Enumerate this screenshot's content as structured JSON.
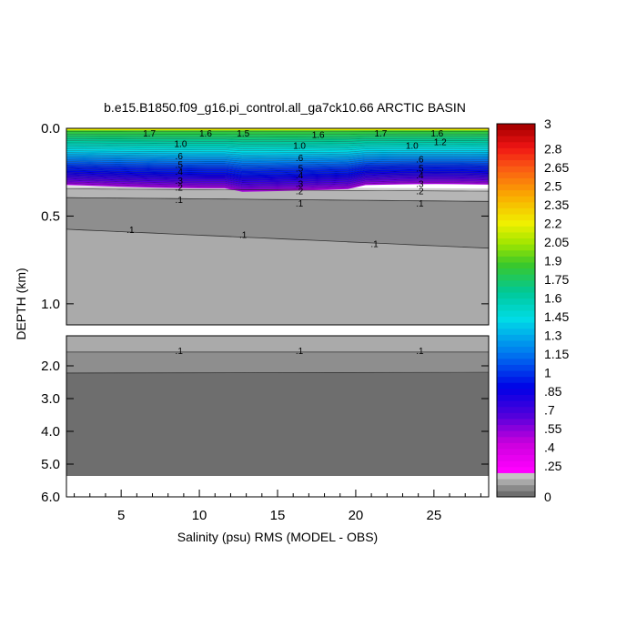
{
  "chart_data": {
    "type": "contour",
    "title": "b.e15.B1850.f09_g16.pi_control.all_ga7ck10.66 ARCTIC BASIN",
    "xlabel": "Salinity (psu) RMS (MODEL - OBS)",
    "ylabel": "DEPTH (km)",
    "xlim": [
      1.5,
      28.5
    ],
    "x_ticks": [
      5,
      10,
      15,
      20,
      25
    ],
    "x_tick_labels": [
      "5",
      "10",
      "15",
      "20",
      "25"
    ],
    "upper_panel": {
      "ylim": [
        0.0,
        1.12
      ],
      "y_ticks": [
        0.0,
        0.5,
        1.0
      ],
      "y_tick_labels": [
        "0.0",
        "0.5",
        "1.0"
      ]
    },
    "lower_panel": {
      "ylim": [
        1.12,
        6.0
      ],
      "y_ticks": [
        2.0,
        3.0,
        4.0,
        5.0,
        6.0
      ],
      "y_tick_labels": [
        "2.0",
        "3.0",
        "4.0",
        "5.0",
        "6.0"
      ],
      "data_bottom_depth": 5.35
    },
    "colorbar": {
      "levels": [
        0,
        0.025,
        0.05,
        0.075,
        0.1,
        0.15,
        0.2,
        0.25,
        0.3,
        0.35,
        0.4,
        0.45,
        0.5,
        0.55,
        0.6,
        0.65,
        0.7,
        0.75,
        0.8,
        0.85,
        0.9,
        0.95,
        1.0,
        1.05,
        1.1,
        1.15,
        1.2,
        1.25,
        1.3,
        1.35,
        1.4,
        1.45,
        1.5,
        1.55,
        1.6,
        1.65,
        1.7,
        1.75,
        1.8,
        1.85,
        1.9,
        1.95,
        2.0,
        2.05,
        2.1,
        2.15,
        2.2,
        2.25,
        2.3,
        2.35,
        2.4,
        2.45,
        2.5,
        2.55,
        2.6,
        2.65,
        2.7,
        2.75,
        2.8,
        2.85,
        2.9,
        2.95,
        3.0
      ],
      "tick_labels": [
        "3",
        "2.8",
        "2.65",
        "2.5",
        "2.35",
        "2.2",
        "2.05",
        "1.9",
        "1.75",
        "1.6",
        "1.45",
        "1.3",
        "1.15",
        "1",
        ".85",
        ".7",
        ".55",
        ".4",
        ".25",
        "0"
      ],
      "tick_values": [
        3,
        2.8,
        2.65,
        2.5,
        2.35,
        2.2,
        2.05,
        1.9,
        1.75,
        1.6,
        1.45,
        1.3,
        1.15,
        1.0,
        0.85,
        0.7,
        0.55,
        0.4,
        0.25,
        0
      ]
    },
    "contour_labels": [
      {
        "text": ".1",
        "x": 5.6,
        "depth": 0.58
      },
      {
        "text": ".1",
        "x": 12.8,
        "depth": 0.61
      },
      {
        "text": ".1",
        "x": 21.2,
        "depth": 0.66
      },
      {
        "text": ".1",
        "x": 8.7,
        "depth": 0.41
      },
      {
        "text": ".1",
        "x": 16.4,
        "depth": 0.43
      },
      {
        "text": ".1",
        "x": 24.1,
        "depth": 0.43
      },
      {
        "text": ".2",
        "x": 8.7,
        "depth": 0.34
      },
      {
        "text": ".2",
        "x": 16.4,
        "depth": 0.36
      },
      {
        "text": ".2",
        "x": 24.1,
        "depth": 0.36
      },
      {
        "text": ".3",
        "x": 8.7,
        "depth": 0.3
      },
      {
        "text": ".3",
        "x": 16.4,
        "depth": 0.32
      },
      {
        "text": ".3",
        "x": 24.1,
        "depth": 0.32
      },
      {
        "text": ".4",
        "x": 8.7,
        "depth": 0.25
      },
      {
        "text": ".4",
        "x": 16.4,
        "depth": 0.27
      },
      {
        "text": ".4",
        "x": 24.1,
        "depth": 0.27
      },
      {
        "text": ".5",
        "x": 8.7,
        "depth": 0.21
      },
      {
        "text": ".5",
        "x": 16.4,
        "depth": 0.23
      },
      {
        "text": ".5",
        "x": 24.1,
        "depth": 0.23
      },
      {
        "text": ".6",
        "x": 8.7,
        "depth": 0.16
      },
      {
        "text": ".6",
        "x": 16.4,
        "depth": 0.17
      },
      {
        "text": ".6",
        "x": 24.1,
        "depth": 0.18
      },
      {
        "text": "1.7",
        "x": 6.8,
        "depth": 0.03
      },
      {
        "text": "1.6",
        "x": 10.4,
        "depth": 0.03
      },
      {
        "text": "1.5",
        "x": 12.8,
        "depth": 0.03
      },
      {
        "text": "1.6",
        "x": 17.6,
        "depth": 0.04
      },
      {
        "text": "1.7",
        "x": 21.6,
        "depth": 0.03
      },
      {
        "text": "1.6",
        "x": 25.2,
        "depth": 0.03
      },
      {
        "text": "1.2",
        "x": 25.4,
        "depth": 0.08
      },
      {
        "text": "1.0",
        "x": 23.6,
        "depth": 0.1
      },
      {
        "text": "1.0",
        "x": 16.4,
        "depth": 0.1
      },
      {
        "text": "1.0",
        "x": 8.8,
        "depth": 0.09
      },
      {
        "text": ".1",
        "x": 8.7,
        "depth": 1.55
      },
      {
        "text": ".1",
        "x": 16.4,
        "depth": 1.55
      },
      {
        "text": ".1",
        "x": 24.1,
        "depth": 1.55
      }
    ]
  }
}
